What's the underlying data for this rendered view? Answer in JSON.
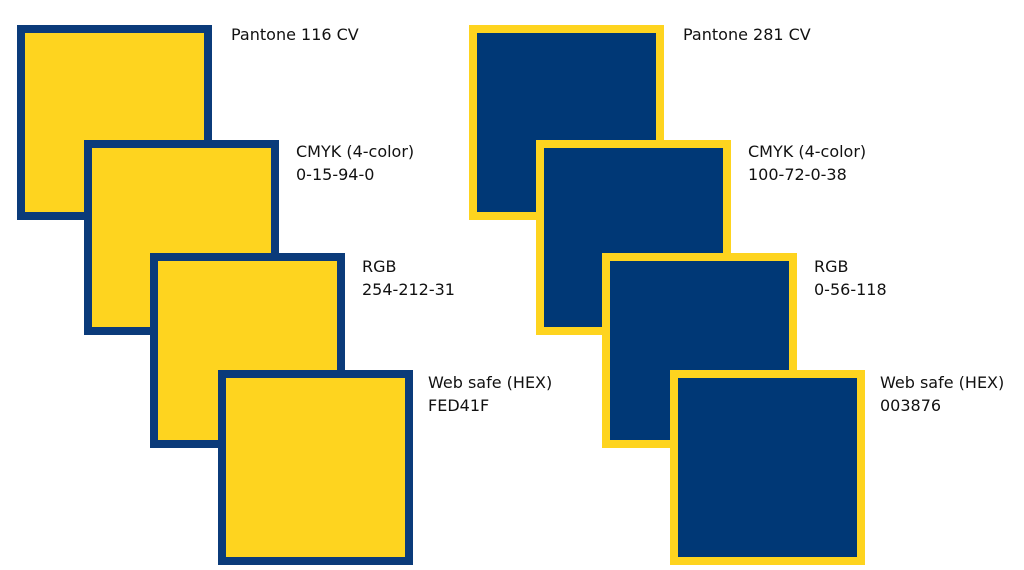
{
  "groups": [
    {
      "swatches": [
        {
          "lines": [
            "Pantone 116 CV"
          ]
        },
        {
          "lines": [
            "CMYK (4-color)",
            "0-15-94-0"
          ]
        },
        {
          "lines": [
            "RGB",
            "254-212-31"
          ]
        },
        {
          "lines": [
            "Web safe (HEX)",
            "FED41F"
          ]
        }
      ]
    },
    {
      "swatches": [
        {
          "lines": [
            "Pantone 281 CV"
          ]
        },
        {
          "lines": [
            "CMYK (4-color)",
            "100-72-0-38"
          ]
        },
        {
          "lines": [
            "RGB",
            "0-56-118"
          ]
        },
        {
          "lines": [
            "Web safe (HEX)",
            "003876"
          ]
        }
      ]
    }
  ]
}
